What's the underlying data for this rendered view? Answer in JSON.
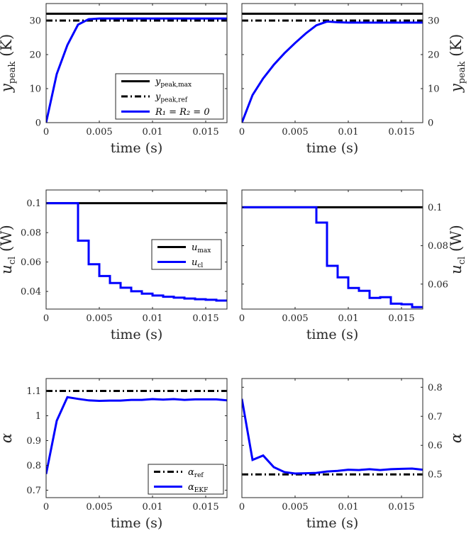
{
  "chart_data": [
    {
      "id": "ypeak_left",
      "type": "line",
      "xlabel": "time (s)",
      "ylabel": {
        "main": "y",
        "sub": "peak",
        "unit": " (K)"
      },
      "xlim": [
        0,
        0.017
      ],
      "ylim": [
        0,
        35
      ],
      "xticks": [
        0,
        0.005,
        0.01,
        0.015
      ],
      "xticklabels": [
        "0",
        "0.005",
        "0.01",
        "0.015"
      ],
      "yticks": [
        0,
        10,
        20,
        30
      ],
      "yticklabels": [
        "0",
        "10",
        "20",
        "30"
      ],
      "ylabel_side": "left",
      "legend": {
        "position": "bottom-right",
        "entries": [
          {
            "main": "y",
            "sub": "peak,max",
            "style": "solid",
            "color": "#000000"
          },
          {
            "main": "y",
            "sub": "peak,ref",
            "style": "dashdot",
            "color": "#000000"
          },
          {
            "text": "R₁ = R₂ = 0",
            "style": "solid",
            "color": "#0000ff"
          }
        ]
      },
      "series": [
        {
          "name": "y_peak,max",
          "color": "#000000",
          "style": "solid",
          "step": false,
          "x": [
            0,
            0.017
          ],
          "y": [
            32,
            32
          ]
        },
        {
          "name": "y_peak,ref",
          "color": "#000000",
          "style": "dashdot",
          "step": false,
          "x": [
            0,
            0.017
          ],
          "y": [
            30,
            30
          ]
        },
        {
          "name": "R1 = R2 = 0",
          "color": "#0000ff",
          "style": "solid",
          "step": false,
          "x": [
            0,
            0.001,
            0.002,
            0.003,
            0.004,
            0.005,
            0.006,
            0.008,
            0.01,
            0.012,
            0.014,
            0.017
          ],
          "y": [
            0,
            14.3,
            22.8,
            28.8,
            30.4,
            30.6,
            30.6,
            30.6,
            30.6,
            30.6,
            30.6,
            30.6
          ]
        }
      ]
    },
    {
      "id": "ypeak_right",
      "type": "line",
      "xlabel": "time (s)",
      "ylabel": {
        "main": "y",
        "sub": "peak",
        "unit": " (K)"
      },
      "xlim": [
        0,
        0.017
      ],
      "ylim": [
        0,
        35
      ],
      "xticks": [
        0,
        0.005,
        0.01,
        0.015
      ],
      "xticklabels": [
        "0",
        "0.005",
        "0.01",
        "0.015"
      ],
      "yticks": [
        0,
        10,
        20,
        30
      ],
      "yticklabels": [
        "0",
        "10",
        "20",
        "30"
      ],
      "ylabel_side": "right",
      "legend": null,
      "series": [
        {
          "name": "y_peak,max",
          "color": "#000000",
          "style": "solid",
          "step": false,
          "x": [
            0,
            0.017
          ],
          "y": [
            32,
            32
          ]
        },
        {
          "name": "y_peak,ref",
          "color": "#000000",
          "style": "dashdot",
          "step": false,
          "x": [
            0,
            0.017
          ],
          "y": [
            30,
            30
          ]
        },
        {
          "name": "R1 = R2 = 0",
          "color": "#0000ff",
          "style": "solid",
          "step": false,
          "x": [
            0,
            0.001,
            0.002,
            0.003,
            0.004,
            0.005,
            0.006,
            0.007,
            0.008,
            0.009,
            0.01,
            0.012,
            0.014,
            0.017
          ],
          "y": [
            0,
            8.1,
            13.0,
            17.0,
            20.4,
            23.4,
            26.2,
            28.6,
            29.7,
            29.5,
            29.4,
            29.4,
            29.4,
            29.4
          ]
        }
      ]
    },
    {
      "id": "ucl_left",
      "type": "line",
      "xlabel": "time (s)",
      "ylabel": {
        "main": "u",
        "sub": "cl",
        "unit": " (W)"
      },
      "xlim": [
        0,
        0.017
      ],
      "ylim": [
        0.028,
        0.109
      ],
      "xticks": [
        0,
        0.005,
        0.01,
        0.015
      ],
      "xticklabels": [
        "0",
        "0.005",
        "0.01",
        "0.015"
      ],
      "yticks": [
        0.04,
        0.06,
        0.08,
        0.1
      ],
      "yticklabels": [
        "0.04",
        "0.06",
        "0.08",
        "0.1"
      ],
      "ylabel_side": "left",
      "legend": {
        "position": "right",
        "entries": [
          {
            "main": "u",
            "sub": "max",
            "style": "solid",
            "color": "#000000"
          },
          {
            "main": "u",
            "sub": "cl",
            "style": "solid",
            "color": "#0000ff"
          }
        ]
      },
      "series": [
        {
          "name": "u_max",
          "color": "#000000",
          "style": "solid",
          "step": false,
          "x": [
            0,
            0.017
          ],
          "y": [
            0.1,
            0.1
          ]
        },
        {
          "name": "u_cl",
          "color": "#0000ff",
          "style": "solid",
          "step": true,
          "x": [
            0,
            0.001,
            0.002,
            0.003,
            0.004,
            0.005,
            0.006,
            0.007,
            0.008,
            0.009,
            0.01,
            0.011,
            0.012,
            0.013,
            0.014,
            0.015,
            0.016,
            0.017
          ],
          "y": [
            0.1,
            0.1,
            0.1,
            0.0745,
            0.0585,
            0.0505,
            0.0457,
            0.0425,
            0.0401,
            0.0385,
            0.0372,
            0.0364,
            0.0358,
            0.0352,
            0.0347,
            0.0343,
            0.0338,
            0.0338
          ]
        }
      ]
    },
    {
      "id": "ucl_right",
      "type": "line",
      "xlabel": "time (s)",
      "ylabel": {
        "main": "u",
        "sub": "cl",
        "unit": " (W)"
      },
      "xlim": [
        0,
        0.017
      ],
      "ylim": [
        0.047,
        0.109
      ],
      "xticks": [
        0,
        0.005,
        0.01,
        0.015
      ],
      "xticklabels": [
        "0",
        "0.005",
        "0.01",
        "0.015"
      ],
      "yticks": [
        0.06,
        0.08,
        0.1
      ],
      "yticklabels": [
        "0.06",
        "0.08",
        "0.1"
      ],
      "ylabel_side": "right",
      "legend": null,
      "series": [
        {
          "name": "u_max",
          "color": "#000000",
          "style": "solid",
          "step": false,
          "x": [
            0,
            0.017
          ],
          "y": [
            0.1,
            0.1
          ]
        },
        {
          "name": "u_cl",
          "color": "#0000ff",
          "style": "solid",
          "step": true,
          "x": [
            0,
            0.001,
            0.002,
            0.003,
            0.004,
            0.005,
            0.006,
            0.007,
            0.008,
            0.009,
            0.01,
            0.011,
            0.012,
            0.013,
            0.014,
            0.015,
            0.016,
            0.017
          ],
          "y": [
            0.1,
            0.1,
            0.1,
            0.1,
            0.1,
            0.1,
            0.1,
            0.092,
            0.0695,
            0.0635,
            0.058,
            0.0565,
            0.0528,
            0.0532,
            0.0498,
            0.0495,
            0.048,
            0.048
          ]
        }
      ]
    },
    {
      "id": "alpha_left",
      "type": "line",
      "xlabel": "time (s)",
      "ylabel": {
        "main": "α",
        "sub": "",
        "unit": ""
      },
      "xlim": [
        0,
        0.017
      ],
      "ylim": [
        0.67,
        1.15
      ],
      "xticks": [
        0,
        0.005,
        0.01,
        0.015
      ],
      "xticklabels": [
        "0",
        "0.005",
        "0.01",
        "0.015"
      ],
      "yticks": [
        0.7,
        0.8,
        0.9,
        1.0,
        1.1
      ],
      "yticklabels": [
        "0.7",
        "0.8",
        "0.9",
        "1",
        "1.1"
      ],
      "ylabel_side": "left",
      "legend": {
        "position": "bottom-right",
        "entries": [
          {
            "main": "α",
            "sub": "ref",
            "style": "dashdot",
            "color": "#000000"
          },
          {
            "main": "α",
            "sub": "EKF",
            "style": "solid",
            "color": "#0000ff"
          }
        ]
      },
      "series": [
        {
          "name": "alpha_ref",
          "color": "#000000",
          "style": "dashdot",
          "step": false,
          "x": [
            0,
            0.017
          ],
          "y": [
            1.1,
            1.1
          ]
        },
        {
          "name": "alpha_EKF",
          "color": "#0000ff",
          "style": "solid",
          "step": false,
          "x": [
            0,
            0.001,
            0.002,
            0.003,
            0.004,
            0.005,
            0.006,
            0.007,
            0.008,
            0.009,
            0.01,
            0.011,
            0.012,
            0.013,
            0.014,
            0.015,
            0.016,
            0.017
          ],
          "y": [
            0.765,
            0.98,
            1.075,
            1.068,
            1.062,
            1.06,
            1.061,
            1.061,
            1.064,
            1.064,
            1.067,
            1.065,
            1.067,
            1.064,
            1.066,
            1.066,
            1.066,
            1.062
          ]
        }
      ]
    },
    {
      "id": "alpha_right",
      "type": "line",
      "xlabel": "time (s)",
      "ylabel": {
        "main": "α",
        "sub": "",
        "unit": ""
      },
      "xlim": [
        0,
        0.017
      ],
      "ylim": [
        0.42,
        0.83
      ],
      "xticks": [
        0,
        0.005,
        0.01,
        0.015
      ],
      "xticklabels": [
        "0",
        "0.005",
        "0.01",
        "0.015"
      ],
      "yticks": [
        0.5,
        0.6,
        0.7,
        0.8
      ],
      "yticklabels": [
        "0.5",
        "0.6",
        "0.7",
        "0.8"
      ],
      "ylabel_side": "right",
      "legend": null,
      "series": [
        {
          "name": "alpha_ref",
          "color": "#000000",
          "style": "dashdot",
          "step": false,
          "x": [
            0,
            0.017
          ],
          "y": [
            0.5,
            0.5
          ]
        },
        {
          "name": "alpha_EKF",
          "color": "#0000ff",
          "style": "solid",
          "step": false,
          "x": [
            0,
            0.001,
            0.002,
            0.003,
            0.004,
            0.005,
            0.006,
            0.007,
            0.008,
            0.009,
            0.01,
            0.011,
            0.012,
            0.013,
            0.014,
            0.015,
            0.016,
            0.017
          ],
          "y": [
            0.76,
            0.55,
            0.565,
            0.525,
            0.508,
            0.503,
            0.504,
            0.505,
            0.51,
            0.512,
            0.516,
            0.515,
            0.518,
            0.515,
            0.518,
            0.519,
            0.52,
            0.516
          ]
        }
      ]
    }
  ]
}
